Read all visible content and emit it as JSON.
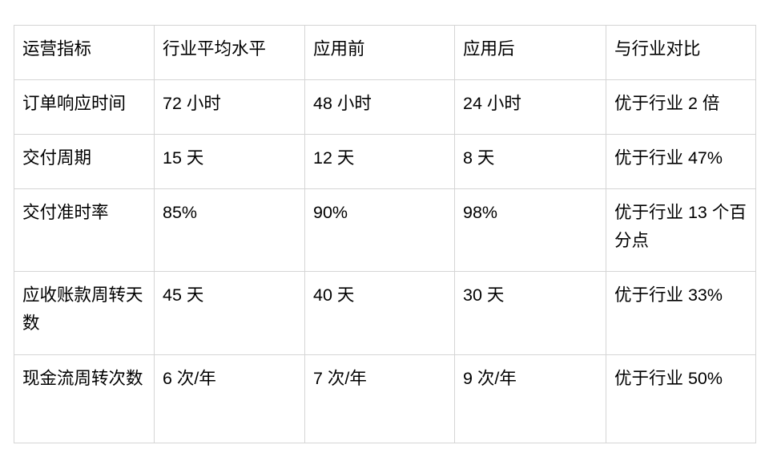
{
  "page": {
    "background_color": "#ffffff",
    "text_color": "#000000",
    "table_border_color": "#d5d5d5"
  },
  "chart_data": {
    "type": "table",
    "columns": [
      "运营指标",
      "行业平均水平",
      "应用前",
      "应用后",
      "与行业对比"
    ],
    "rows": [
      [
        "订单响应时间",
        "72 小时",
        "48 小时",
        "24 小时",
        "优于行业 2 倍"
      ],
      [
        "交付周期",
        "15 天",
        "12 天",
        "8 天",
        "优于行业 47%"
      ],
      [
        "交付准时率",
        "85%",
        "90%",
        "98%",
        "优于行业 13 个百分点"
      ],
      [
        "应收账款周转天数",
        "45 天",
        "40 天",
        "30 天",
        "优于行业 33%"
      ],
      [
        "现金流周转次数",
        "6 次/年",
        "7 次/年",
        "9 次/年",
        "优于行业 50%"
      ]
    ]
  }
}
